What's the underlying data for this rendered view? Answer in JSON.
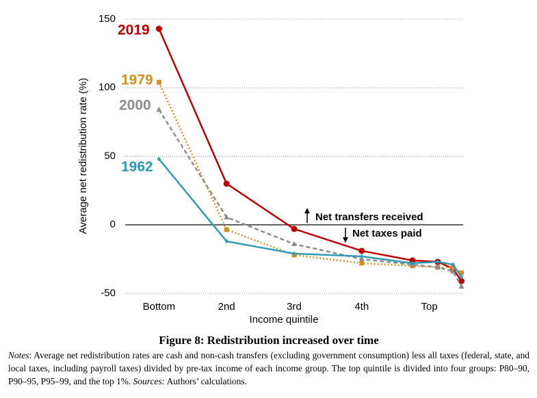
{
  "chart_data": {
    "type": "line",
    "y_label": "Average net redistribution rate (%)",
    "x_label": "Income quintile",
    "x": [
      1,
      2,
      3,
      4,
      4.75,
      5.125,
      5.35,
      5.475
    ],
    "xlim": [
      0.5,
      5.5
    ],
    "xticks": [
      {
        "value": 1,
        "label": "Bottom"
      },
      {
        "value": 2,
        "label": "2nd"
      },
      {
        "value": 3,
        "label": "3rd"
      },
      {
        "value": 4,
        "label": "4th"
      },
      {
        "value": 5,
        "label": "Top"
      }
    ],
    "ylim": [
      -50,
      150
    ],
    "yticks": [
      -50,
      0,
      50,
      100,
      150
    ],
    "grid": true,
    "series": [
      {
        "name": "2019",
        "color": "#c00000",
        "dash": "solid",
        "marker": "circle",
        "values": [
          143,
          30,
          -3,
          -19,
          -26,
          -27,
          -32,
          -41
        ]
      },
      {
        "name": "1979",
        "color": "#d4901c",
        "dash": "dotted",
        "marker": "square",
        "values": [
          104,
          -3.5,
          -22,
          -28,
          -30,
          -31,
          -31,
          -35
        ]
      },
      {
        "name": "2000",
        "color": "#8c8c8c",
        "dash": "dashed",
        "marker": "triangle",
        "values": [
          84,
          5.5,
          -14,
          -25,
          -29,
          -31,
          -34,
          -45
        ]
      },
      {
        "name": "1962",
        "color": "#2e9ab5",
        "dash": "solid",
        "marker": "diamond",
        "values": [
          48,
          -12,
          -21,
          -23,
          -28,
          -27,
          -29,
          -38
        ]
      }
    ],
    "annotations": [
      "Net transfers received",
      "Net taxes paid"
    ]
  },
  "caption": {
    "title": "Figure 8: Redistribution increased over time",
    "notes_label": "Notes",
    "notes_text": ": Average net redistribution rates are cash and non-cash transfers (excluding government consumption) less all taxes (federal, state, and local taxes, including payroll taxes) divided by pre-tax income of each income group. The top quintile is divided into four groups: P80–90, P90–95, P95–99, and the top 1%. ",
    "sources_label": "Sources:",
    "sources_text": " Authors’ calculations."
  }
}
